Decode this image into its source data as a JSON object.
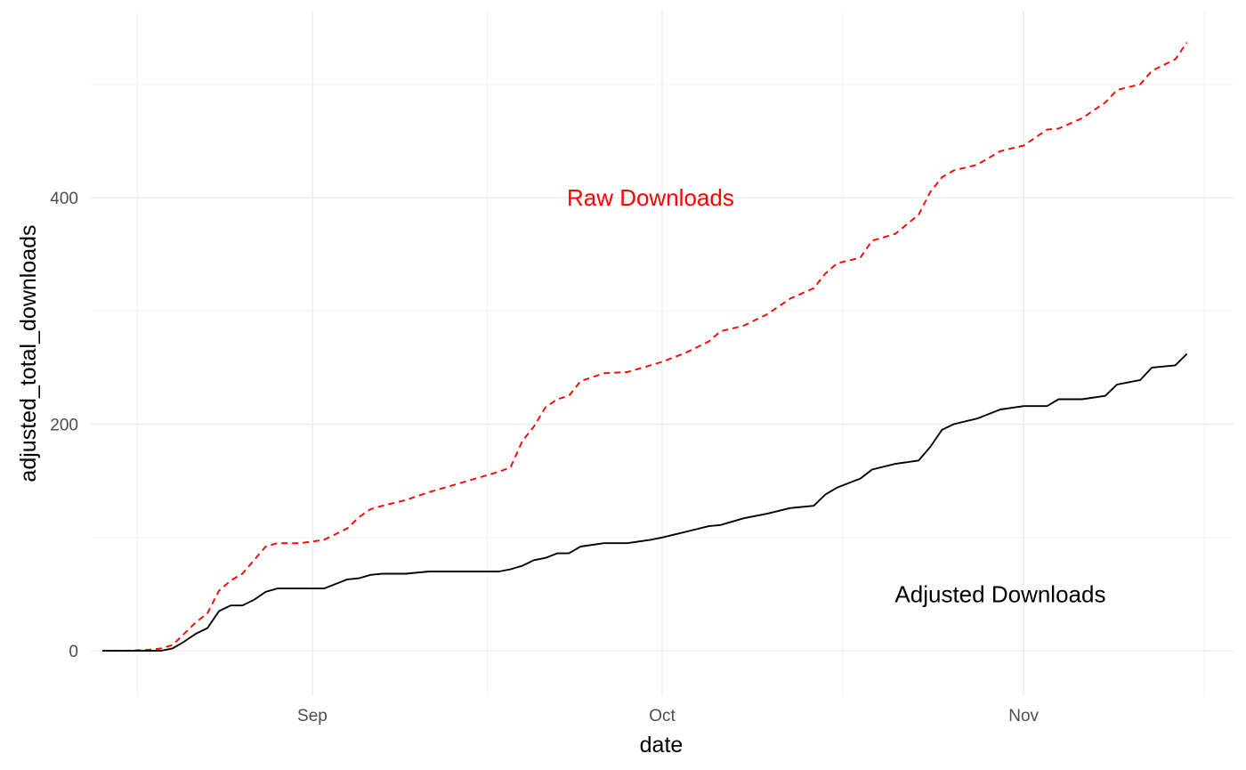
{
  "chart_data": {
    "type": "line",
    "xlabel": "date",
    "ylabel": "adjusted_total_downloads",
    "x_ticks": [
      "Sep",
      "Oct",
      "Nov"
    ],
    "y_ticks": [
      "0",
      "200",
      "400"
    ],
    "xlim": [
      "2024-08-13",
      "2024-11-19"
    ],
    "ylim": [
      -40,
      565
    ],
    "grid": true,
    "annotations": [
      {
        "label": "Raw Downloads",
        "x": "2024-09-30",
        "y": 400,
        "color": "#ff0000"
      },
      {
        "label": "Adjusted Downloads",
        "x": "2024-10-30",
        "y": 50,
        "color": "#000000"
      }
    ],
    "x": [
      "2024-08-14",
      "2024-08-16",
      "2024-08-18",
      "2024-08-19",
      "2024-08-20",
      "2024-08-21",
      "2024-08-22",
      "2024-08-23",
      "2024-08-24",
      "2024-08-25",
      "2024-08-26",
      "2024-08-27",
      "2024-08-28",
      "2024-08-29",
      "2024-08-30",
      "2024-08-31",
      "2024-09-02",
      "2024-09-04",
      "2024-09-05",
      "2024-09-06",
      "2024-09-07",
      "2024-09-09",
      "2024-09-11",
      "2024-09-13",
      "2024-09-15",
      "2024-09-17",
      "2024-09-18",
      "2024-09-19",
      "2024-09-20",
      "2024-09-21",
      "2024-09-22",
      "2024-09-23",
      "2024-09-24",
      "2024-09-26",
      "2024-09-28",
      "2024-09-30",
      "2024-10-01",
      "2024-10-03",
      "2024-10-05",
      "2024-10-06",
      "2024-10-08",
      "2024-10-10",
      "2024-10-12",
      "2024-10-14",
      "2024-10-15",
      "2024-10-16",
      "2024-10-18",
      "2024-10-19",
      "2024-10-21",
      "2024-10-23",
      "2024-10-24",
      "2024-10-25",
      "2024-10-26",
      "2024-10-28",
      "2024-10-30",
      "2024-11-01",
      "2024-11-03",
      "2024-11-04",
      "2024-11-06",
      "2024-11-08",
      "2024-11-09",
      "2024-11-11",
      "2024-11-12",
      "2024-11-14",
      "2024-11-15"
    ],
    "series": [
      {
        "name": "Raw Downloads",
        "color": "#ff0000",
        "dash": "dashed",
        "values": [
          0,
          0,
          1,
          2,
          5,
          15,
          25,
          33,
          53,
          62,
          68,
          80,
          92,
          95,
          95,
          95,
          98,
          108,
          118,
          125,
          128,
          133,
          140,
          146,
          152,
          158,
          162,
          185,
          198,
          215,
          222,
          225,
          238,
          245,
          246,
          252,
          255,
          263,
          273,
          282,
          287,
          297,
          311,
          320,
          333,
          342,
          347,
          362,
          368,
          385,
          405,
          418,
          424,
          429,
          441,
          446,
          460,
          461,
          470,
          484,
          495,
          500,
          512,
          522,
          537
        ]
      },
      {
        "name": "Adjusted Downloads",
        "color": "#000000",
        "dash": "solid",
        "values": [
          0,
          0,
          0,
          0,
          2,
          8,
          15,
          20,
          35,
          40,
          40,
          45,
          52,
          55,
          55,
          55,
          55,
          63,
          64,
          67,
          68,
          68,
          70,
          70,
          70,
          70,
          72,
          75,
          80,
          82,
          86,
          86,
          92,
          95,
          95,
          98,
          100,
          105,
          110,
          111,
          117,
          121,
          126,
          128,
          138,
          144,
          152,
          160,
          165,
          168,
          180,
          195,
          200,
          205,
          213,
          216,
          216,
          222,
          222,
          225,
          235,
          239,
          250,
          252,
          262
        ]
      }
    ]
  }
}
